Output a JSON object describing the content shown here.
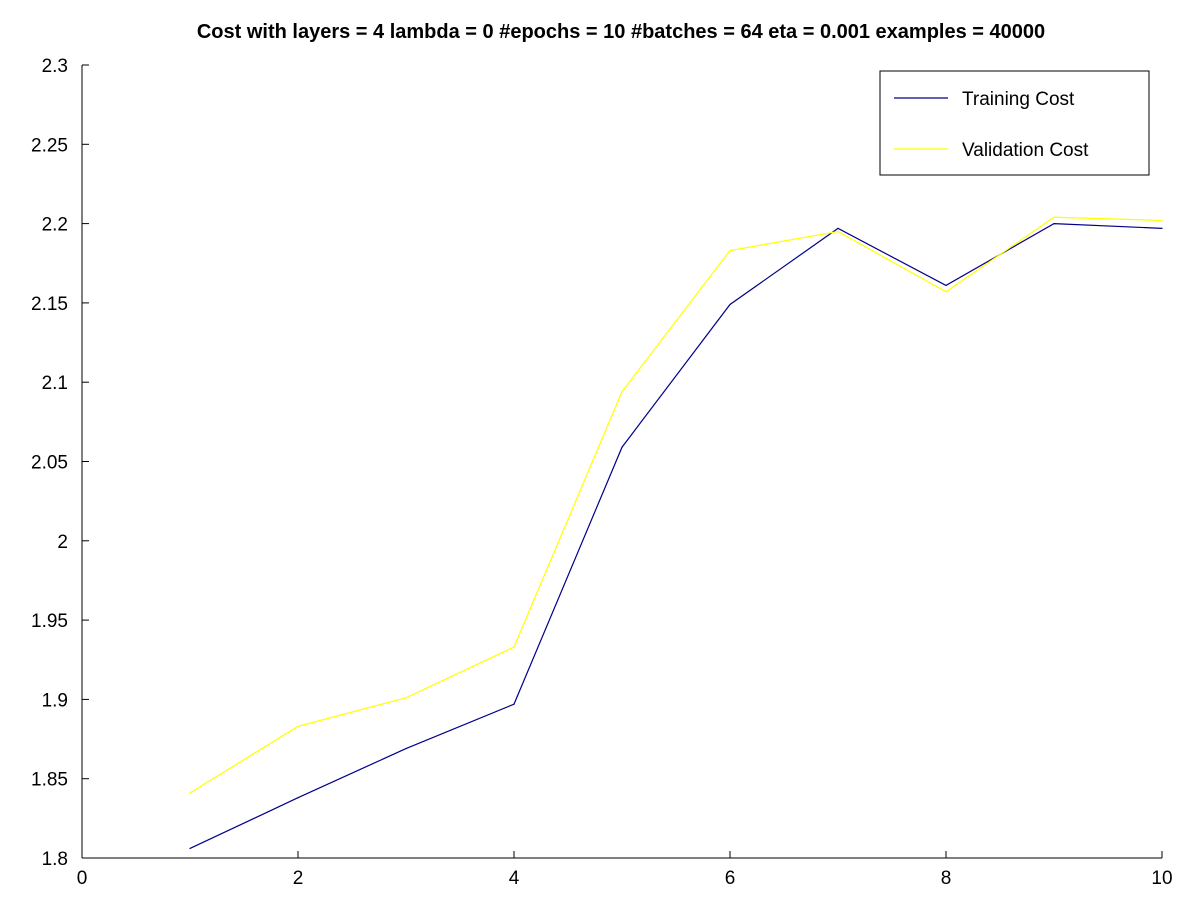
{
  "chart_data": {
    "type": "line",
    "title": "Cost with layers = 4 lambda = 0 #epochs = 10 #batches = 64 eta = 0.001 examples = 40000",
    "xlabel": "",
    "ylabel": "",
    "xlim": [
      0,
      10
    ],
    "ylim": [
      1.8,
      2.3
    ],
    "x_ticks": [
      0,
      2,
      4,
      6,
      8,
      10
    ],
    "x_tick_labels": [
      "0",
      "2",
      "4",
      "6",
      "8",
      "10"
    ],
    "y_ticks": [
      1.8,
      1.85,
      1.9,
      1.95,
      2.0,
      2.05,
      2.1,
      2.15,
      2.2,
      2.25,
      2.3
    ],
    "y_tick_labels": [
      "1.8",
      "1.85",
      "1.9",
      "1.95",
      "2",
      "2.05",
      "2.1",
      "2.15",
      "2.2",
      "2.25",
      "2.3"
    ],
    "grid": false,
    "legend_position": "top-right",
    "x": [
      1,
      2,
      3,
      4,
      5,
      6,
      7,
      8,
      9,
      10
    ],
    "series": [
      {
        "name": "Training Cost",
        "color": "#00008b",
        "values": [
          1.806,
          1.838,
          1.869,
          1.897,
          2.059,
          2.149,
          2.197,
          2.161,
          2.2,
          2.197
        ]
      },
      {
        "name": "Validation Cost",
        "color": "#ffff00",
        "values": [
          1.841,
          1.883,
          1.901,
          1.933,
          2.094,
          2.183,
          2.195,
          2.157,
          2.204,
          2.202
        ]
      }
    ]
  }
}
